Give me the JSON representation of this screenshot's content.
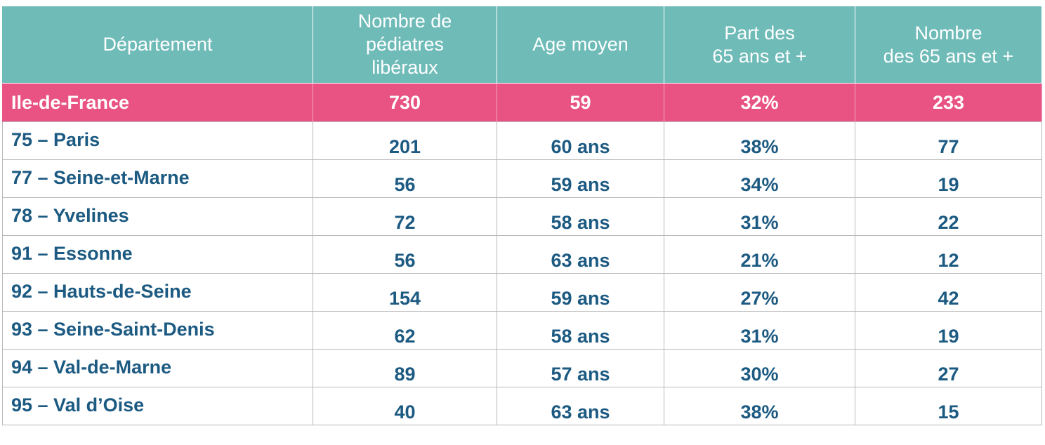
{
  "table": {
    "headers": [
      "Département",
      "Nombre de\npédiatres\nlibéraux",
      "Age moyen",
      "Part des\n65 ans et +",
      "Nombre\ndes 65 ans et +"
    ],
    "region": {
      "name": "Ile-de-France",
      "pediatres": "730",
      "age": "59",
      "part": "32%",
      "nombre": "233"
    },
    "rows": [
      {
        "name": "75 – Paris",
        "pediatres": "201",
        "age": "60 ans",
        "part": "38%",
        "nombre": "77"
      },
      {
        "name": "77 – Seine-et-Marne",
        "pediatres": "56",
        "age": "59 ans",
        "part": "34%",
        "nombre": "19"
      },
      {
        "name": "78 – Yvelines",
        "pediatres": "72",
        "age": "58 ans",
        "part": "31%",
        "nombre": "22"
      },
      {
        "name": "91 – Essonne",
        "pediatres": "56",
        "age": "63 ans",
        "part": "21%",
        "nombre": "12"
      },
      {
        "name": "92 – Hauts-de-Seine",
        "pediatres": "154",
        "age": "59 ans",
        "part": "27%",
        "nombre": "42"
      },
      {
        "name": "93 – Seine-Saint-Denis",
        "pediatres": "62",
        "age": "58 ans",
        "part": "31%",
        "nombre": "19"
      },
      {
        "name": "94 – Val-de-Marne",
        "pediatres": "89",
        "age": "57 ans",
        "part": "30%",
        "nombre": "27"
      },
      {
        "name": "95 – Val d’Oise",
        "pediatres": "40",
        "age": "63 ans",
        "part": "38%",
        "nombre": "15"
      }
    ]
  },
  "colors": {
    "header_bg": "#6fbbb8",
    "region_bg": "#e95383",
    "dept_text": "#1c5a82",
    "grid_line": "#b9b9b9"
  }
}
